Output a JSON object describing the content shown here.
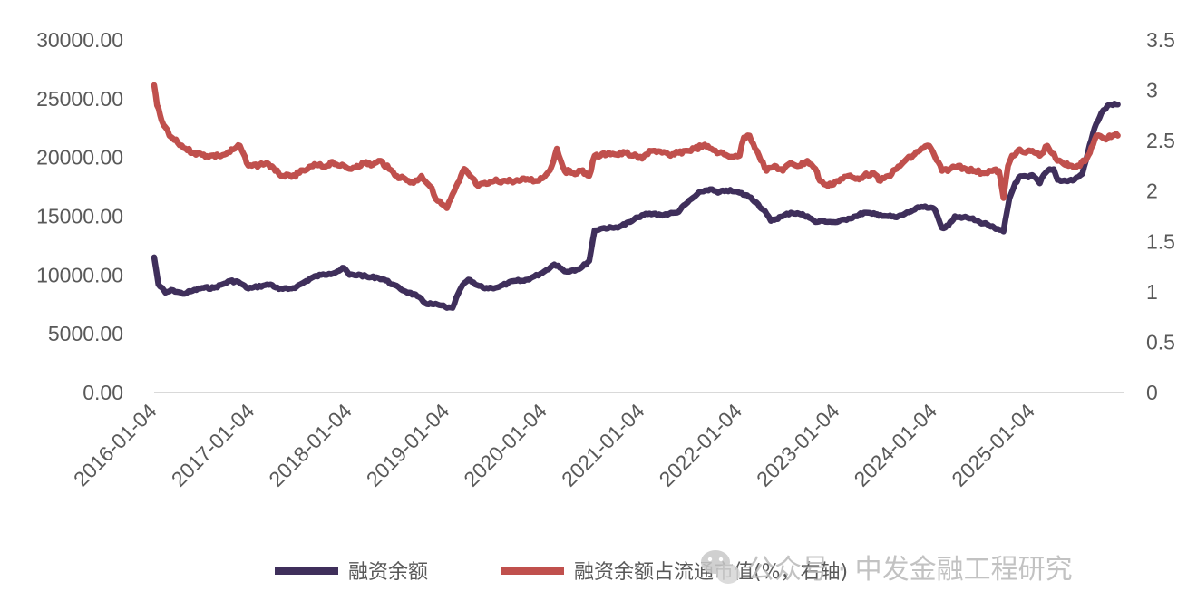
{
  "chart_data": {
    "type": "line",
    "title": "",
    "xlabel": "",
    "ylabel": "",
    "x_ticks": [
      "2016-01-04",
      "2017-01-04",
      "2018-01-04",
      "2019-01-04",
      "2020-01-04",
      "2021-01-04",
      "2022-01-04",
      "2023-01-04",
      "2024-01-04",
      "2025-01-04"
    ],
    "y_left": {
      "range": [
        0,
        30000
      ],
      "ticks": [
        "0.00",
        "5000.00",
        "10000.00",
        "15000.00",
        "20000.00",
        "25000.00",
        "30000.00"
      ]
    },
    "y_right": {
      "range": [
        0,
        3.5
      ],
      "ticks": [
        "0",
        "0.5",
        "1",
        "1.5",
        "2",
        "2.5",
        "3",
        "3.5"
      ]
    },
    "grid": false,
    "legend_position": "bottom",
    "series": [
      {
        "name": "融资余额",
        "axis": "left",
        "color": "#3f2f5b",
        "points": [
          [
            "2016-01-04",
            11500
          ],
          [
            "2016-01-20",
            9200
          ],
          [
            "2016-02-15",
            8500
          ],
          [
            "2016-03-15",
            8700
          ],
          [
            "2016-04-20",
            8400
          ],
          [
            "2016-05-20",
            8600
          ],
          [
            "2016-07-01",
            8900
          ],
          [
            "2016-08-15",
            8900
          ],
          [
            "2016-09-15",
            9200
          ],
          [
            "2016-10-15",
            9500
          ],
          [
            "2016-11-15",
            9400
          ],
          [
            "2016-12-15",
            8900
          ],
          [
            "2017-01-04",
            8900
          ],
          [
            "2017-02-15",
            9100
          ],
          [
            "2017-03-15",
            9200
          ],
          [
            "2017-04-15",
            8800
          ],
          [
            "2017-05-20",
            8800
          ],
          [
            "2017-06-20",
            9000
          ],
          [
            "2017-07-20",
            9400
          ],
          [
            "2017-08-20",
            9800
          ],
          [
            "2017-09-20",
            10000
          ],
          [
            "2017-10-20",
            10100
          ],
          [
            "2017-11-20",
            10300
          ],
          [
            "2017-12-15",
            10600
          ],
          [
            "2018-01-04",
            10000
          ],
          [
            "2018-02-15",
            10000
          ],
          [
            "2018-03-15",
            9800
          ],
          [
            "2018-04-15",
            9800
          ],
          [
            "2018-05-15",
            9600
          ],
          [
            "2018-06-15",
            9200
          ],
          [
            "2018-07-15",
            8800
          ],
          [
            "2018-08-15",
            8500
          ],
          [
            "2018-09-15",
            8200
          ],
          [
            "2018-10-15",
            7600
          ],
          [
            "2018-11-15",
            7500
          ],
          [
            "2018-12-15",
            7400
          ],
          [
            "2019-01-04",
            7200
          ],
          [
            "2019-01-25",
            7200
          ],
          [
            "2019-02-15",
            8400
          ],
          [
            "2019-03-10",
            9300
          ],
          [
            "2019-03-25",
            9600
          ],
          [
            "2019-04-20",
            9200
          ],
          [
            "2019-05-20",
            8900
          ],
          [
            "2019-06-20",
            8900
          ],
          [
            "2019-07-20",
            9000
          ],
          [
            "2019-08-20",
            9300
          ],
          [
            "2019-09-20",
            9500
          ],
          [
            "2019-10-20",
            9500
          ],
          [
            "2019-11-20",
            9800
          ],
          [
            "2019-12-20",
            10100
          ],
          [
            "2020-01-04",
            10300
          ],
          [
            "2020-02-10",
            10900
          ],
          [
            "2020-02-25",
            10800
          ],
          [
            "2020-03-20",
            10300
          ],
          [
            "2020-04-20",
            10400
          ],
          [
            "2020-05-20",
            10600
          ],
          [
            "2020-06-20",
            11200
          ],
          [
            "2020-07-10",
            13800
          ],
          [
            "2020-08-15",
            14000
          ],
          [
            "2020-09-20",
            14000
          ],
          [
            "2020-10-20",
            14200
          ],
          [
            "2020-11-20",
            14500
          ],
          [
            "2020-12-20",
            14900
          ],
          [
            "2021-01-04",
            15100
          ],
          [
            "2021-02-15",
            15200
          ],
          [
            "2021-03-15",
            15100
          ],
          [
            "2021-04-15",
            15200
          ],
          [
            "2021-05-15",
            15300
          ],
          [
            "2021-06-15",
            16000
          ],
          [
            "2021-07-15",
            16600
          ],
          [
            "2021-08-15",
            17100
          ],
          [
            "2021-09-15",
            17300
          ],
          [
            "2021-10-15",
            17000
          ],
          [
            "2021-11-15",
            17200
          ],
          [
            "2021-12-15",
            17100
          ],
          [
            "2022-01-04",
            17000
          ],
          [
            "2022-02-15",
            16600
          ],
          [
            "2022-03-15",
            16000
          ],
          [
            "2022-04-15",
            15200
          ],
          [
            "2022-05-01",
            14600
          ],
          [
            "2022-06-15",
            15000
          ],
          [
            "2022-07-15",
            15300
          ],
          [
            "2022-08-15",
            15200
          ],
          [
            "2022-09-15",
            15000
          ],
          [
            "2022-10-15",
            14500
          ],
          [
            "2022-11-15",
            14600
          ],
          [
            "2022-12-15",
            14500
          ],
          [
            "2023-01-04",
            14500
          ],
          [
            "2023-02-15",
            14800
          ],
          [
            "2023-03-15",
            15000
          ],
          [
            "2023-04-15",
            15300
          ],
          [
            "2023-05-15",
            15200
          ],
          [
            "2023-06-15",
            15100
          ],
          [
            "2023-07-15",
            15000
          ],
          [
            "2023-08-15",
            14900
          ],
          [
            "2023-09-15",
            15200
          ],
          [
            "2023-10-15",
            15500
          ],
          [
            "2023-11-15",
            15800
          ],
          [
            "2023-12-15",
            15700
          ],
          [
            "2024-01-04",
            15600
          ],
          [
            "2024-02-01",
            14000
          ],
          [
            "2024-02-25",
            14200
          ],
          [
            "2024-03-20",
            15000
          ],
          [
            "2024-04-20",
            14900
          ],
          [
            "2024-05-20",
            14800
          ],
          [
            "2024-06-20",
            14500
          ],
          [
            "2024-07-20",
            14300
          ],
          [
            "2024-08-20",
            13900
          ],
          [
            "2024-09-18",
            13700
          ],
          [
            "2024-10-10",
            16500
          ],
          [
            "2024-11-01",
            17800
          ],
          [
            "2024-11-20",
            18400
          ],
          [
            "2024-12-20",
            18300
          ],
          [
            "2025-01-04",
            18500
          ],
          [
            "2025-02-01",
            17800
          ],
          [
            "2025-02-15",
            18500
          ],
          [
            "2025-03-10",
            19000
          ],
          [
            "2025-03-25",
            19000
          ],
          [
            "2025-04-08",
            18100
          ],
          [
            "2025-05-10",
            18000
          ],
          [
            "2025-06-10",
            18100
          ],
          [
            "2025-07-10",
            18600
          ],
          [
            "2025-08-01",
            20500
          ],
          [
            "2025-08-25",
            22500
          ],
          [
            "2025-09-20",
            23800
          ],
          [
            "2025-10-20",
            24500
          ],
          [
            "2025-11-20",
            24500
          ]
        ]
      },
      {
        "name": "融资余额占流通市值(%，右轴)",
        "axis": "right",
        "color": "#c0504d",
        "points": [
          [
            "2016-01-04",
            3.05
          ],
          [
            "2016-01-15",
            2.85
          ],
          [
            "2016-02-01",
            2.7
          ],
          [
            "2016-03-01",
            2.55
          ],
          [
            "2016-04-01",
            2.48
          ],
          [
            "2016-05-01",
            2.42
          ],
          [
            "2016-06-01",
            2.38
          ],
          [
            "2016-07-01",
            2.36
          ],
          [
            "2016-08-01",
            2.35
          ],
          [
            "2016-09-01",
            2.35
          ],
          [
            "2016-10-01",
            2.37
          ],
          [
            "2016-11-01",
            2.42
          ],
          [
            "2016-11-20",
            2.45
          ],
          [
            "2016-12-15",
            2.28
          ],
          [
            "2017-01-04",
            2.25
          ],
          [
            "2017-02-01",
            2.26
          ],
          [
            "2017-03-01",
            2.28
          ],
          [
            "2017-04-01",
            2.2
          ],
          [
            "2017-05-01",
            2.15
          ],
          [
            "2017-06-01",
            2.14
          ],
          [
            "2017-07-01",
            2.18
          ],
          [
            "2017-08-01",
            2.22
          ],
          [
            "2017-09-01",
            2.26
          ],
          [
            "2017-10-01",
            2.24
          ],
          [
            "2017-11-01",
            2.29
          ],
          [
            "2017-12-01",
            2.25
          ],
          [
            "2018-01-04",
            2.22
          ],
          [
            "2018-02-01",
            2.25
          ],
          [
            "2018-03-01",
            2.28
          ],
          [
            "2018-04-01",
            2.26
          ],
          [
            "2018-05-01",
            2.3
          ],
          [
            "2018-06-01",
            2.22
          ],
          [
            "2018-07-01",
            2.15
          ],
          [
            "2018-08-01",
            2.12
          ],
          [
            "2018-09-01",
            2.08
          ],
          [
            "2018-10-01",
            2.15
          ],
          [
            "2018-11-01",
            2.05
          ],
          [
            "2018-12-01",
            1.9
          ],
          [
            "2019-01-04",
            1.83
          ],
          [
            "2019-02-01",
            2.0
          ],
          [
            "2019-02-20",
            2.1
          ],
          [
            "2019-03-10",
            2.22
          ],
          [
            "2019-04-01",
            2.15
          ],
          [
            "2019-05-01",
            2.05
          ],
          [
            "2019-06-01",
            2.07
          ],
          [
            "2019-07-01",
            2.1
          ],
          [
            "2019-08-01",
            2.1
          ],
          [
            "2019-09-01",
            2.1
          ],
          [
            "2019-10-01",
            2.1
          ],
          [
            "2019-11-01",
            2.12
          ],
          [
            "2019-12-01",
            2.1
          ],
          [
            "2020-01-04",
            2.14
          ],
          [
            "2020-02-01",
            2.25
          ],
          [
            "2020-02-20",
            2.42
          ],
          [
            "2020-03-20",
            2.2
          ],
          [
            "2020-04-20",
            2.18
          ],
          [
            "2020-05-20",
            2.2
          ],
          [
            "2020-06-20",
            2.15
          ],
          [
            "2020-07-10",
            2.35
          ],
          [
            "2020-08-01",
            2.35
          ],
          [
            "2020-09-01",
            2.38
          ],
          [
            "2020-10-01",
            2.36
          ],
          [
            "2020-11-01",
            2.38
          ],
          [
            "2020-12-01",
            2.35
          ],
          [
            "2021-01-04",
            2.32
          ],
          [
            "2021-02-01",
            2.4
          ],
          [
            "2021-02-20",
            2.4
          ],
          [
            "2021-03-20",
            2.38
          ],
          [
            "2021-04-20",
            2.35
          ],
          [
            "2021-05-20",
            2.38
          ],
          [
            "2021-06-20",
            2.4
          ],
          [
            "2021-07-20",
            2.42
          ],
          [
            "2021-08-20",
            2.45
          ],
          [
            "2021-09-20",
            2.42
          ],
          [
            "2021-10-20",
            2.38
          ],
          [
            "2021-11-20",
            2.35
          ],
          [
            "2021-12-20",
            2.35
          ],
          [
            "2022-01-04",
            2.35
          ],
          [
            "2022-01-20",
            2.53
          ],
          [
            "2022-02-10",
            2.55
          ],
          [
            "2022-03-10",
            2.4
          ],
          [
            "2022-04-15",
            2.2
          ],
          [
            "2022-05-15",
            2.25
          ],
          [
            "2022-06-15",
            2.2
          ],
          [
            "2022-07-15",
            2.28
          ],
          [
            "2022-08-15",
            2.25
          ],
          [
            "2022-09-15",
            2.3
          ],
          [
            "2022-10-15",
            2.22
          ],
          [
            "2022-11-01",
            2.1
          ],
          [
            "2022-12-01",
            2.05
          ],
          [
            "2023-01-04",
            2.1
          ],
          [
            "2023-02-15",
            2.15
          ],
          [
            "2023-03-15",
            2.12
          ],
          [
            "2023-04-15",
            2.15
          ],
          [
            "2023-05-15",
            2.18
          ],
          [
            "2023-06-15",
            2.1
          ],
          [
            "2023-07-15",
            2.15
          ],
          [
            "2023-08-15",
            2.22
          ],
          [
            "2023-09-15",
            2.3
          ],
          [
            "2023-10-15",
            2.35
          ],
          [
            "2023-11-15",
            2.42
          ],
          [
            "2023-12-15",
            2.45
          ],
          [
            "2024-01-04",
            2.35
          ],
          [
            "2024-02-01",
            2.2
          ],
          [
            "2024-03-01",
            2.22
          ],
          [
            "2024-04-01",
            2.25
          ],
          [
            "2024-05-01",
            2.22
          ],
          [
            "2024-06-01",
            2.2
          ],
          [
            "2024-07-01",
            2.18
          ],
          [
            "2024-08-01",
            2.2
          ],
          [
            "2024-09-01",
            2.2
          ],
          [
            "2024-09-18",
            1.93
          ],
          [
            "2024-10-05",
            2.25
          ],
          [
            "2024-10-20",
            2.35
          ],
          [
            "2024-11-10",
            2.4
          ],
          [
            "2024-12-10",
            2.38
          ],
          [
            "2025-01-04",
            2.4
          ],
          [
            "2025-02-01",
            2.35
          ],
          [
            "2025-03-01",
            2.45
          ],
          [
            "2025-04-08",
            2.3
          ],
          [
            "2025-05-01",
            2.27
          ],
          [
            "2025-06-01",
            2.25
          ],
          [
            "2025-07-01",
            2.25
          ],
          [
            "2025-08-01",
            2.35
          ],
          [
            "2025-09-01",
            2.55
          ],
          [
            "2025-10-01",
            2.52
          ],
          [
            "2025-11-01",
            2.55
          ],
          [
            "2025-11-20",
            2.55
          ]
        ]
      }
    ]
  },
  "watermark": {
    "text": "公众号 · 中发金融工程研究",
    "icon": "wechat-icon"
  }
}
